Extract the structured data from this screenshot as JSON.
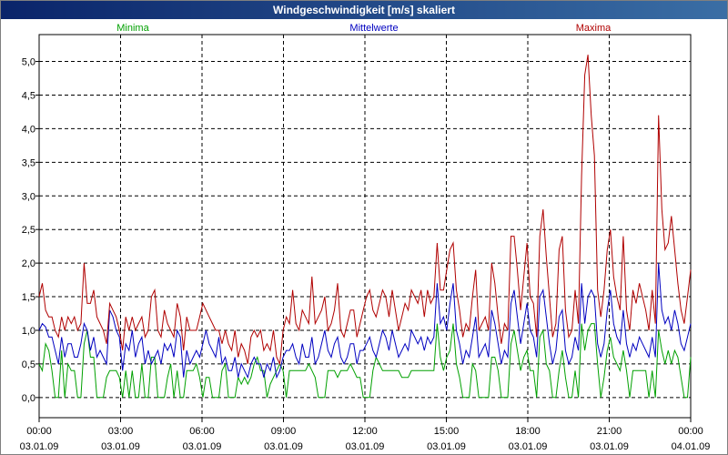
{
  "window": {
    "title": "Windgeschwindigkeit [m/s] skaliert"
  },
  "chart_data": {
    "type": "line",
    "title": "Windgeschwindigkeit [m/s] skaliert",
    "ylim": [
      -0.3,
      5.4
    ],
    "xlim": [
      0,
      24
    ],
    "grid": true,
    "legend_placement": "top",
    "y_ticks": [
      "0,0",
      "0,5",
      "1,0",
      "1,5",
      "2,0",
      "2,5",
      "3,0",
      "3,5",
      "4,0",
      "4,5",
      "5,0"
    ],
    "x_ticks": [
      {
        "time": "00:00",
        "date": "03.01.09"
      },
      {
        "time": "03:00",
        "date": "03.01.09"
      },
      {
        "time": "06:00",
        "date": "03.01.09"
      },
      {
        "time": "09:00",
        "date": "03.01.09"
      },
      {
        "time": "12:00",
        "date": "03.01.09"
      },
      {
        "time": "15:00",
        "date": "03.01.09"
      },
      {
        "time": "18:00",
        "date": "03.01.09"
      },
      {
        "time": "21:00",
        "date": "03.01.09"
      },
      {
        "time": "00:00",
        "date": "04.01.09"
      }
    ],
    "series": [
      {
        "name": "Minima",
        "color": "#00a000",
        "values": [
          0.5,
          0.4,
          0.8,
          0.7,
          0.4,
          0.0,
          0.0,
          0.7,
          0.0,
          0.5,
          0.4,
          0.4,
          0.0,
          0.0,
          0.8,
          1.0,
          0.6,
          0.6,
          0.0,
          0.0,
          0.0,
          0.3,
          0.4,
          0.4,
          0.4,
          0.3,
          0.0,
          0.4,
          0.0,
          0.4,
          0.0,
          0.0,
          0.5,
          0.0,
          0.0,
          0.6,
          0.6,
          0.0,
          0.0,
          0.0,
          0.3,
          0.5,
          0.0,
          0.4,
          0.0,
          0.0,
          0.4,
          0.4,
          0.4,
          0.5,
          0.3,
          0.0,
          0.3,
          0.3,
          0.0,
          0.0,
          0.0,
          0.4,
          0.5,
          0.0,
          0.0,
          0.0,
          0.3,
          0.2,
          0.3,
          0.2,
          0.3,
          0.5,
          0.6,
          0.4,
          0.4,
          0.0,
          0.2,
          0.3,
          0.4,
          0.5,
          0.4,
          0.0,
          0.4,
          0.4,
          0.4,
          0.4,
          0.4,
          0.4,
          0.5,
          0.4,
          0.3,
          0.0,
          0.0,
          0.0,
          0.4,
          0.4,
          0.4,
          0.3,
          0.4,
          0.4,
          0.4,
          0.5,
          0.4,
          0.3,
          0.3,
          0.0,
          0.0,
          0.0,
          0.4,
          0.6,
          0.5,
          0.4,
          0.4,
          0.4,
          0.4,
          0.4,
          0.4,
          0.3,
          0.3,
          0.3,
          0.4,
          0.4,
          0.4,
          0.4,
          0.4,
          0.4,
          0.4,
          0.4,
          1.1,
          0.6,
          0.4,
          0.6,
          0.7,
          1.1,
          0.5,
          0.3,
          0.0,
          0.0,
          0.0,
          0.5,
          0.4,
          0.0,
          0.0,
          0.0,
          0.0,
          0.6,
          0.6,
          0.4,
          0.0,
          0.0,
          0.0,
          0.8,
          1.0,
          0.7,
          0.4,
          0.6,
          0.7,
          0.4,
          0.4,
          0.0,
          0.9,
          1.0,
          0.5,
          0.4,
          0.0,
          0.0,
          0.4,
          0.7,
          0.3,
          0.0,
          0.0,
          0.4,
          0.0,
          1.1,
          0.7,
          1.0,
          1.1,
          1.1,
          0.5,
          0.0,
          0.3,
          0.7,
          0.9,
          0.6,
          0.5,
          0.4,
          0.7,
          0.4,
          0.0,
          0.4,
          0.4,
          0.4,
          0.4,
          0.4,
          0.0,
          0.4,
          0.0,
          1.0,
          0.7,
          0.5,
          0.7,
          0.5,
          0.7,
          0.6,
          0.3,
          0.0,
          0.0,
          0.6
        ],
        "ylabel_hint": ""
      },
      {
        "name": "Mittelwerte",
        "color": "#0000c0",
        "values": [
          1.0,
          1.1,
          1.05,
          0.9,
          0.9,
          0.7,
          0.5,
          0.9,
          0.6,
          0.8,
          0.8,
          0.6,
          0.6,
          0.8,
          1.1,
          1.0,
          0.7,
          0.9,
          0.6,
          0.7,
          0.6,
          0.5,
          1.3,
          1.2,
          1.0,
          0.9,
          0.4,
          0.8,
          0.7,
          1.0,
          0.6,
          0.8,
          0.9,
          0.5,
          0.7,
          0.5,
          0.6,
          0.7,
          0.5,
          0.8,
          0.7,
          0.8,
          0.6,
          1.0,
          0.9,
          0.3,
          0.7,
          0.5,
          0.6,
          0.7,
          0.6,
          0.8,
          1.0,
          0.8,
          0.7,
          0.6,
          0.9,
          0.5,
          0.6,
          0.4,
          0.4,
          0.6,
          0.3,
          0.5,
          0.4,
          0.3,
          0.5,
          0.6,
          0.5,
          0.5,
          0.3,
          0.5,
          0.4,
          0.6,
          0.3,
          0.4,
          0.6,
          0.7,
          0.7,
          0.8,
          0.6,
          0.5,
          0.8,
          0.6,
          0.6,
          0.9,
          0.5,
          0.6,
          0.8,
          1.0,
          0.7,
          0.6,
          0.8,
          0.9,
          0.6,
          0.5,
          0.6,
          0.8,
          0.8,
          0.5,
          0.7,
          0.7,
          0.8,
          0.9,
          0.7,
          0.6,
          0.8,
          1.0,
          0.9,
          0.7,
          1.0,
          0.8,
          0.6,
          0.7,
          0.8,
          0.7,
          1.0,
          0.9,
          0.8,
          0.9,
          0.7,
          0.9,
          0.8,
          0.9,
          1.7,
          1.1,
          1.2,
          1.0,
          1.4,
          1.7,
          1.0,
          0.8,
          0.5,
          0.7,
          0.6,
          0.9,
          1.2,
          0.6,
          0.7,
          0.8,
          0.6,
          1.3,
          1.1,
          0.8,
          0.5,
          0.7,
          0.6,
          1.4,
          1.6,
          1.2,
          0.8,
          1.1,
          1.4,
          1.0,
          0.9,
          0.6,
          1.5,
          1.6,
          1.2,
          0.8,
          0.5,
          0.7,
          1.2,
          1.3,
          0.7,
          0.5,
          0.6,
          0.9,
          0.7,
          1.7,
          1.1,
          1.5,
          1.6,
          1.5,
          0.8,
          0.6,
          0.8,
          1.3,
          1.6,
          1.1,
          0.9,
          0.8,
          1.3,
          0.8,
          0.6,
          0.8,
          0.7,
          0.9,
          0.8,
          0.7,
          0.6,
          0.9,
          0.6,
          2.0,
          1.3,
          1.1,
          1.2,
          1.0,
          1.3,
          1.1,
          0.8,
          0.7,
          0.9,
          1.1
        ],
        "ylabel_hint": ""
      },
      {
        "name": "Maxima",
        "color": "#b00000",
        "values": [
          1.5,
          1.7,
          1.3,
          1.2,
          1.2,
          1.0,
          0.9,
          1.2,
          1.0,
          1.2,
          1.1,
          1.2,
          1.0,
          1.1,
          2.0,
          1.4,
          1.4,
          1.6,
          1.2,
          1.1,
          1.0,
          0.8,
          1.4,
          1.3,
          1.2,
          1.0,
          0.7,
          1.2,
          1.0,
          1.2,
          1.0,
          1.1,
          1.2,
          0.9,
          1.0,
          1.5,
          1.6,
          1.0,
          0.9,
          1.3,
          1.1,
          1.0,
          0.9,
          1.4,
          1.2,
          0.7,
          1.2,
          1.0,
          1.0,
          1.0,
          1.2,
          1.4,
          1.3,
          1.2,
          1.1,
          1.0,
          1.0,
          0.8,
          1.0,
          0.8,
          0.7,
          1.0,
          0.6,
          0.8,
          0.7,
          0.5,
          0.9,
          1.0,
          0.9,
          1.0,
          0.7,
          0.8,
          0.7,
          1.0,
          0.6,
          0.5,
          1.0,
          1.2,
          1.1,
          1.6,
          1.1,
          1.0,
          1.3,
          1.2,
          1.1,
          1.8,
          1.1,
          1.2,
          1.3,
          1.5,
          1.0,
          1.1,
          1.3,
          1.7,
          1.0,
          0.9,
          1.1,
          1.3,
          1.3,
          0.9,
          1.1,
          1.3,
          1.5,
          1.6,
          1.3,
          1.2,
          1.4,
          1.6,
          1.5,
          1.2,
          1.6,
          1.3,
          1.0,
          1.2,
          1.4,
          1.3,
          1.6,
          1.5,
          1.4,
          1.6,
          1.2,
          1.6,
          1.4,
          1.5,
          2.3,
          1.6,
          1.6,
          1.9,
          2.2,
          2.3,
          1.6,
          1.3,
          0.9,
          1.1,
          1.0,
          1.5,
          1.9,
          1.0,
          1.1,
          1.2,
          1.0,
          2.0,
          1.7,
          1.2,
          0.8,
          1.1,
          1.0,
          2.4,
          2.4,
          1.9,
          1.3,
          1.8,
          2.3,
          1.5,
          1.4,
          0.9,
          2.4,
          2.8,
          2.1,
          1.5,
          0.9,
          1.1,
          2.2,
          2.4,
          1.3,
          0.9,
          1.0,
          1.6,
          1.1,
          3.3,
          4.8,
          5.1,
          4.2,
          3.6,
          1.6,
          1.2,
          1.6,
          2.2,
          2.5,
          1.8,
          1.5,
          1.3,
          2.4,
          1.3,
          1.0,
          1.6,
          1.4,
          1.7,
          1.5,
          1.3,
          1.0,
          1.6,
          1.1,
          4.2,
          2.8,
          2.2,
          2.3,
          2.7,
          2.2,
          1.7,
          1.3,
          1.1,
          1.5,
          1.9
        ],
        "ylabel_hint": ""
      }
    ]
  }
}
